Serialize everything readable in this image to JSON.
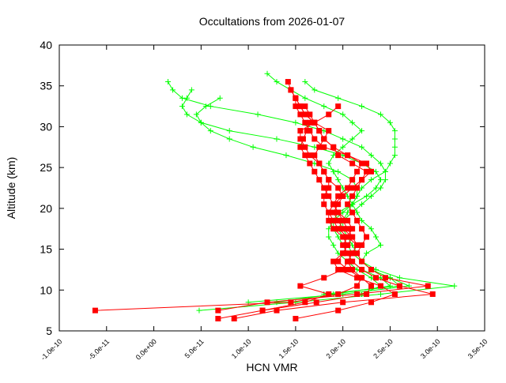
{
  "chart_data": {
    "type": "line",
    "title": "Occultations from 2026-01-07",
    "xlabel": "HCN VMR",
    "ylabel": "Altitude (km)",
    "xlim": [
      -1e-10,
      3.5e-10
    ],
    "ylim": [
      5,
      40
    ],
    "xticks": [
      -1e-10,
      -5e-11,
      0.0,
      5e-11,
      1e-10,
      1.5e-10,
      2e-10,
      2.5e-10,
      3e-10,
      3.5e-10
    ],
    "xtick_labels": [
      "-1.0e-10",
      "-5.0e-11",
      "0.0e+00",
      "5.0e-11",
      "1.0e-10",
      "1.5e-10",
      "2.0e-10",
      "2.5e-10",
      "3.0e-10",
      "3.5e-10"
    ],
    "yticks": [
      5,
      10,
      15,
      20,
      25,
      30,
      35,
      40
    ],
    "ytick_labels": [
      "5",
      "10",
      "15",
      "20",
      "25",
      "30",
      "35",
      "40"
    ],
    "grid": false,
    "series": [
      {
        "color": "#ff0000",
        "marker": "square",
        "profiles": [
          {
            "alt_start": 7.5,
            "vmr": [
              -6.2e-11,
              1.45e-10,
              1.95e-10,
              2.15e-10,
              2.2e-10,
              2.05e-10,
              1.95e-10,
              2e-10,
              2.05e-10,
              2.1e-10,
              2e-10,
              1.95e-10,
              1.9e-10,
              1.95e-10,
              2e-10,
              1.95e-10,
              1.85e-10,
              1.8e-10,
              1.75e-10,
              1.7e-10,
              1.75e-10,
              1.8e-10,
              1.85e-10,
              1.7e-10,
              1.6e-10,
              1.55e-10,
              1.5e-10,
              1.45e-10,
              1.42e-10
            ]
          },
          {
            "alt_start": 6.5,
            "vmr": [
              6.8e-11,
              1.15e-10,
              1.72e-10,
              2.25e-10,
              2.3e-10,
              2.2e-10,
              2.1e-10,
              2.05e-10,
              2.1e-10,
              2.15e-10,
              2.1e-10,
              2.05e-10,
              2e-10,
              1.95e-10,
              1.9e-10,
              2e-10,
              2.1e-10,
              2.2e-10,
              2.25e-10,
              2.1e-10,
              1.95e-10,
              1.9e-10,
              1.8e-10,
              1.75e-10,
              1.7e-10,
              1.6e-10,
              1.55e-10,
              1.5e-10,
              1.45e-10
            ]
          },
          {
            "alt_start": 6.5,
            "vmr": [
              1.5e-10,
              1.95e-10,
              2.3e-10,
              2.55e-10,
              2.4e-10,
              2.15e-10,
              1.95e-10,
              1.9e-10,
              2e-10,
              2.05e-10,
              2e-10,
              1.9e-10,
              1.85e-10,
              1.85e-10,
              1.9e-10,
              1.95e-10,
              2.05e-10,
              2.1e-10,
              2.15e-10,
              2.2e-10,
              2.05e-10,
              1.8e-10,
              1.7e-10,
              1.65e-10,
              1.6e-10,
              1.55e-10,
              1.5e-10,
              1.5e-10
            ]
          },
          {
            "alt_start": 7.5,
            "vmr": [
              6.8e-11,
              1.2e-10,
              2.15e-10,
              2.9e-10,
              2.45e-10,
              2.3e-10,
              2.2e-10,
              2.15e-10,
              2.2e-10,
              2.25e-10,
              2.2e-10,
              2.15e-10,
              2.1e-10,
              2.05e-10,
              2.1e-10,
              2.15e-10,
              2.2e-10,
              2.3e-10,
              2.25e-10,
              2.05e-10,
              1.9e-10,
              1.8e-10,
              1.75e-10,
              1.7e-10,
              1.65e-10,
              1.6e-10
            ]
          },
          {
            "alt_start": 6.5,
            "vmr": [
              8.5e-11,
              1.3e-10,
              2e-10,
              2.95e-10,
              2.6e-10,
              2.35e-10,
              2.2e-10,
              2.1e-10,
              2.05e-10,
              2e-10,
              2.05e-10,
              2.1e-10,
              2.05e-10,
              1.95e-10,
              1.9e-10,
              1.85e-10,
              1.8e-10,
              1.75e-10,
              1.7e-10,
              1.65e-10,
              1.6e-10,
              1.55e-10,
              1.58e-10,
              1.62e-10,
              1.65e-10
            ]
          },
          {
            "alt_start": 7.5,
            "vmr": [
              1.15e-10,
              1.6e-10,
              1.85e-10,
              1.55e-10,
              1.8e-10,
              2e-10,
              2.05e-10,
              2.1e-10,
              2.15e-10,
              2.05e-10,
              1.95e-10,
              1.9e-10,
              1.85e-10,
              1.8e-10,
              1.8e-10,
              1.85e-10,
              1.85e-10,
              1.8e-10,
              1.75e-10,
              1.65e-10,
              1.6e-10,
              1.55e-10,
              1.55e-10,
              1.7e-10,
              1.85e-10,
              1.95e-10
            ]
          }
        ]
      },
      {
        "color": "#00ff00",
        "marker": "plus",
        "profiles": [
          {
            "alt_start": 7.5,
            "vmr": [
              4.8e-11,
              1.5e-10,
              2.4e-10,
              3.18e-10,
              2.6e-10,
              2.35e-10,
              2.2e-10,
              2.25e-10,
              2.4e-10,
              2.35e-10,
              2.3e-10,
              2.2e-10,
              2.15e-10,
              2.1e-10,
              2.15e-10,
              2.2e-10,
              2.3e-10,
              2.45e-10,
              2.5e-10,
              2.55e-10,
              2.55e-10,
              2.55e-10,
              2.55e-10,
              2.5e-10,
              2.4e-10,
              2.2e-10,
              1.95e-10,
              1.7e-10,
              1.6e-10
            ]
          },
          {
            "alt_start": 8.5,
            "vmr": [
              1e-10,
              2e-10,
              2.7e-10,
              2.5e-10,
              2.3e-10,
              2.2e-10,
              2.15e-10,
              2.1e-10,
              2.05e-10,
              2e-10,
              2e-10,
              2.1e-10,
              2.2e-10,
              2.3e-10,
              2.4e-10,
              2.45e-10,
              2.45e-10,
              2.4e-10,
              2.3e-10,
              2.2e-10,
              2e-10,
              1.8e-10,
              1.5e-10,
              1.1e-10,
              6e-11,
              3e-11,
              2e-11,
              1.5e-11
            ]
          },
          {
            "alt_start": 8.5,
            "vmr": [
              1.3e-10,
              1.9e-10,
              2.5e-10,
              2.4e-10,
              2.2e-10,
              2.1e-10,
              2.05e-10,
              2e-10,
              1.95e-10,
              1.9e-10,
              1.9e-10,
              1.95e-10,
              2.1e-10,
              2.25e-10,
              2.35e-10,
              2.4e-10,
              2.35e-10,
              2.2e-10,
              2e-10,
              1.7e-10,
              1.3e-10,
              8e-11,
              5e-11,
              3.5e-11,
              3e-11,
              3.5e-11,
              4e-11
            ]
          },
          {
            "alt_start": 9.5,
            "vmr": [
              2.2e-10,
              2.4e-10,
              2.3e-10,
              2.15e-10,
              2.05e-10,
              1.95e-10,
              1.9e-10,
              1.85e-10,
              1.85e-10,
              1.9e-10,
              2e-10,
              2.1e-10,
              2.15e-10,
              2.15e-10,
              2.1e-10,
              1.95e-10,
              1.7e-10,
              1.4e-10,
              1.05e-10,
              8e-11,
              6e-11,
              5e-11,
              4.5e-11,
              5.5e-11,
              7e-11
            ]
          },
          {
            "alt_start": 9.5,
            "vmr": [
              1.8e-10,
              2.6e-10,
              2.5e-10,
              2.3e-10,
              2.2e-10,
              2.1e-10,
              2.05e-10,
              2e-10,
              1.95e-10,
              2e-10,
              2.05e-10,
              2.1e-10,
              2.05e-10,
              2e-10,
              1.95e-10,
              1.9e-10,
              1.85e-10,
              1.9e-10,
              2e-10,
              2.1e-10,
              2.2e-10,
              2.1e-10,
              2e-10,
              1.8e-10,
              1.6e-10,
              1.45e-10,
              1.3e-10,
              1.2e-10
            ]
          }
        ]
      }
    ]
  }
}
